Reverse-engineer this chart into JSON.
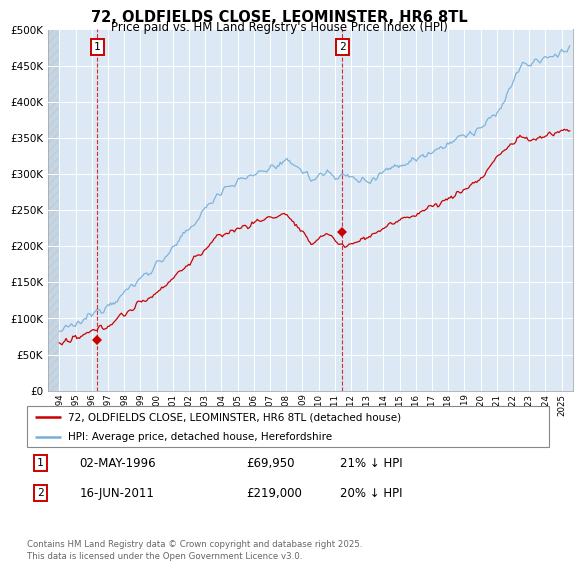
{
  "title_line1": "72, OLDFIELDS CLOSE, LEOMINSTER, HR6 8TL",
  "title_line2": "Price paid vs. HM Land Registry's House Price Index (HPI)",
  "hpi_color": "#7ab0d8",
  "price_color": "#cc0000",
  "annotation_box_color": "#cc0000",
  "plot_bg": "#dce9f5",
  "fig_bg": "#ffffff",
  "grid_color": "#ffffff",
  "ylim": [
    0,
    500000
  ],
  "yticks": [
    0,
    50000,
    100000,
    150000,
    200000,
    250000,
    300000,
    350000,
    400000,
    450000,
    500000
  ],
  "xlim_start": 1993.3,
  "xlim_end": 2025.7,
  "hatch_end": 1994.0,
  "sale1_x": 1996.34,
  "sale1_y": 69950,
  "sale1_label": "1",
  "sale1_date": "02-MAY-1996",
  "sale1_price": "£69,950",
  "sale1_hpi": "21% ↓ HPI",
  "sale2_x": 2011.46,
  "sale2_y": 219000,
  "sale2_label": "2",
  "sale2_date": "16-JUN-2011",
  "sale2_price": "£219,000",
  "sale2_hpi": "20% ↓ HPI",
  "legend_label1": "72, OLDFIELDS CLOSE, LEOMINSTER, HR6 8TL (detached house)",
  "legend_label2": "HPI: Average price, detached house, Herefordshire",
  "footer_text": "Contains HM Land Registry data © Crown copyright and database right 2025.\nThis data is licensed under the Open Government Licence v3.0."
}
